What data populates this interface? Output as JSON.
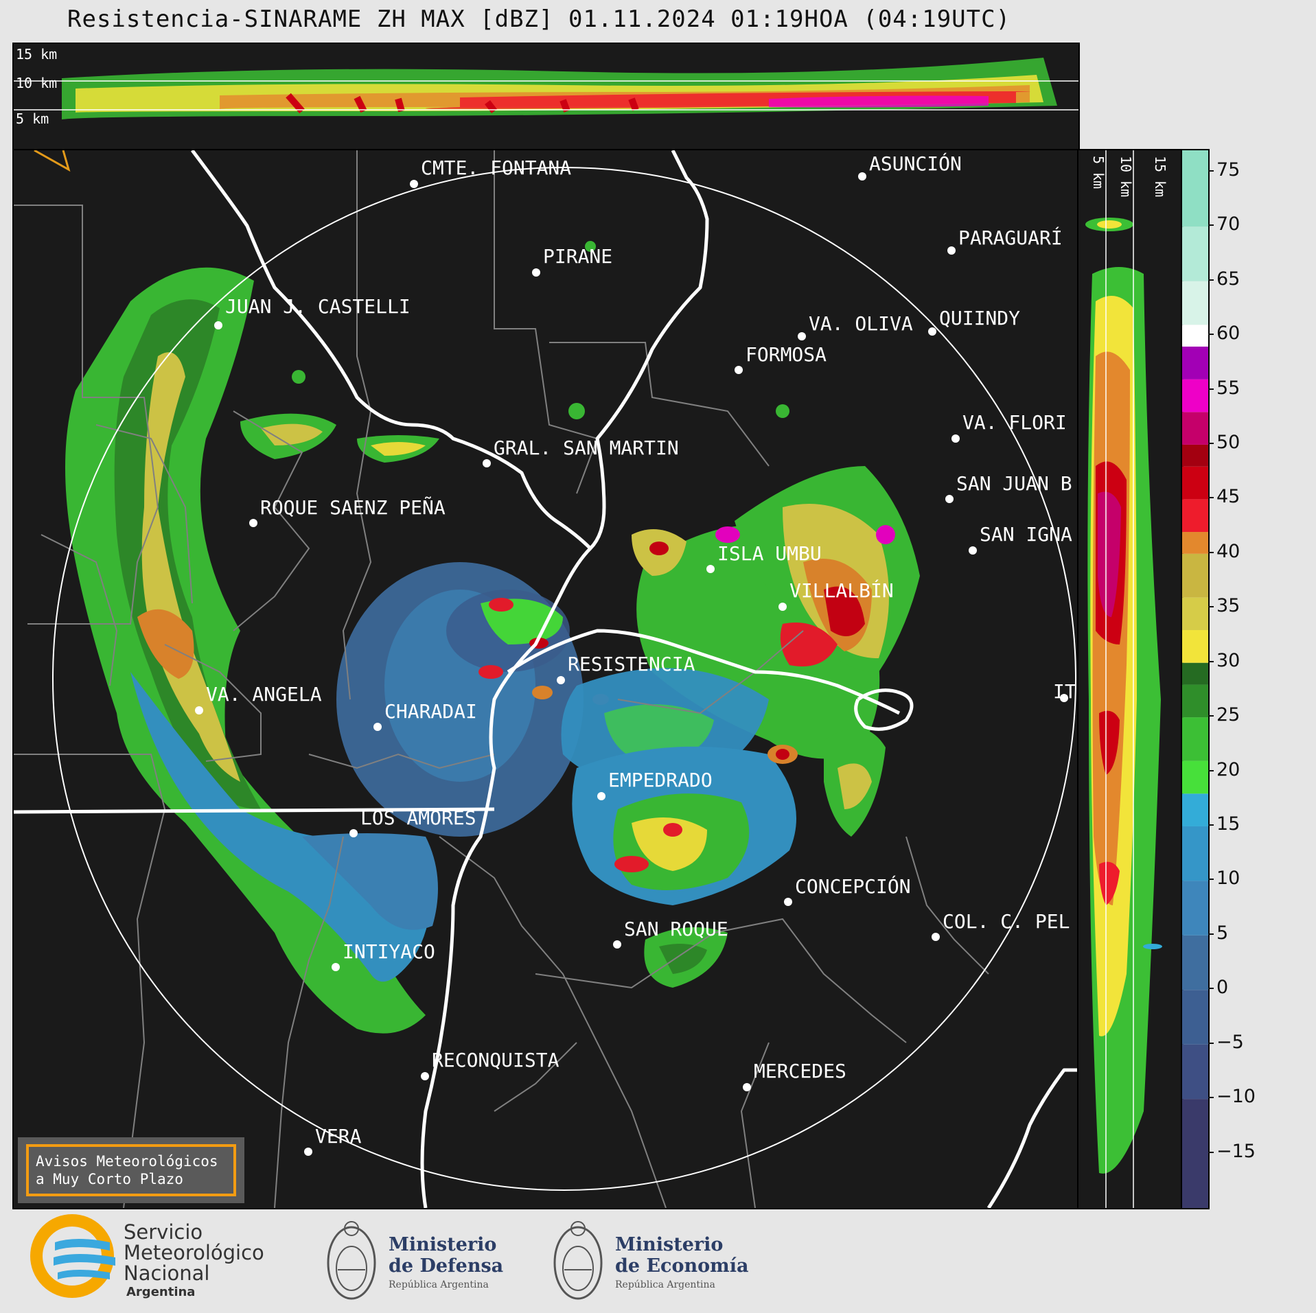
{
  "title": "Resistencia-SINARAME ZH MAX [dBZ] 01.11.2024 01:19HOA (04:19UTC)",
  "top_panel": {
    "height_labels": [
      "15 km",
      "10 km",
      "5 km"
    ]
  },
  "side_panel": {
    "height_labels": [
      "5 km",
      "10 km",
      "15 km"
    ]
  },
  "colorbar": {
    "ticks": [
      "75",
      "70",
      "65",
      "60",
      "55",
      "50",
      "45",
      "40",
      "35",
      "30",
      "25",
      "20",
      "15",
      "10",
      "5",
      "0",
      "−5",
      "−10",
      "−15"
    ],
    "tick_values": [
      75,
      70,
      65,
      60,
      55,
      50,
      45,
      40,
      35,
      30,
      25,
      20,
      15,
      10,
      5,
      0,
      -5,
      -10,
      -15
    ],
    "range": [
      -20,
      77
    ],
    "stops": [
      {
        "from": -20,
        "color": "#3a3a6a"
      },
      {
        "from": -10,
        "color": "#3e4f84"
      },
      {
        "from": -5,
        "color": "#3d5f92"
      },
      {
        "from": 0,
        "color": "#3f6e9f"
      },
      {
        "from": 5,
        "color": "#3e86bb"
      },
      {
        "from": 10,
        "color": "#3596c8"
      },
      {
        "from": 15,
        "color": "#33acd8"
      },
      {
        "from": 18,
        "color": "#47e03a"
      },
      {
        "from": 21,
        "color": "#3cbf35"
      },
      {
        "from": 25,
        "color": "#2f8e2a"
      },
      {
        "from": 28,
        "color": "#256b22"
      },
      {
        "from": 30,
        "color": "#f2e43a"
      },
      {
        "from": 33,
        "color": "#d6cc48"
      },
      {
        "from": 36,
        "color": "#c9b641"
      },
      {
        "from": 40,
        "color": "#e3882d"
      },
      {
        "from": 42,
        "color": "#ee1c2c"
      },
      {
        "from": 45,
        "color": "#cc0012"
      },
      {
        "from": 48,
        "color": "#a30010"
      },
      {
        "from": 50,
        "color": "#c5006a"
      },
      {
        "from": 53,
        "color": "#ee00c7"
      },
      {
        "from": 56,
        "color": "#a200b5"
      },
      {
        "from": 59,
        "color": "#ffffff"
      },
      {
        "from": 61,
        "color": "#d8f3e8"
      },
      {
        "from": 65,
        "color": "#b3ead7"
      },
      {
        "from": 70,
        "color": "#8fdfc4"
      }
    ]
  },
  "cities": [
    {
      "name": "CMTE. FONTANA"
    },
    {
      "name": "ASUNCIÓN"
    },
    {
      "name": "PARAGUARÍ"
    },
    {
      "name": "PIRANE"
    },
    {
      "name": "JUAN J. CASTELLI"
    },
    {
      "name": "VA. OLIVA"
    },
    {
      "name": "QUIINDY"
    },
    {
      "name": "FORMOSA"
    },
    {
      "name": "VA. FLORI"
    },
    {
      "name": "GRAL. SAN MARTIN"
    },
    {
      "name": "SAN JUAN B"
    },
    {
      "name": "ROQUE SAENZ PEÑA"
    },
    {
      "name": "SAN IGNA"
    },
    {
      "name": "ISLA UMBU"
    },
    {
      "name": "VILLALBÍN"
    },
    {
      "name": "RESISTENCIA"
    },
    {
      "name": "VA. ANGELA"
    },
    {
      "name": "IT"
    },
    {
      "name": "CHARADAI"
    },
    {
      "name": "EMPEDRADO"
    },
    {
      "name": "LOS AMORES"
    },
    {
      "name": "CONCEPCIÓN"
    },
    {
      "name": "SAN ROQUE"
    },
    {
      "name": "COL. C. PEL"
    },
    {
      "name": "INTIYACO"
    },
    {
      "name": "RECONQUISTA"
    },
    {
      "name": "MERCEDES"
    },
    {
      "name": "VERA"
    }
  ],
  "avisos": {
    "line1": "Avisos Meteorológicos",
    "line2": "a Muy Corto Plazo"
  },
  "logos": {
    "smn": {
      "line1": "Servicio",
      "line2": "Meteorológico",
      "line3": "Nacional",
      "line4": "Argentina"
    },
    "defensa": {
      "line1": "Ministerio",
      "line2": "de Defensa",
      "line3": "República Argentina"
    },
    "economia": {
      "line1": "Ministerio",
      "line2": "de Economía",
      "line3": "República Argentina"
    }
  }
}
